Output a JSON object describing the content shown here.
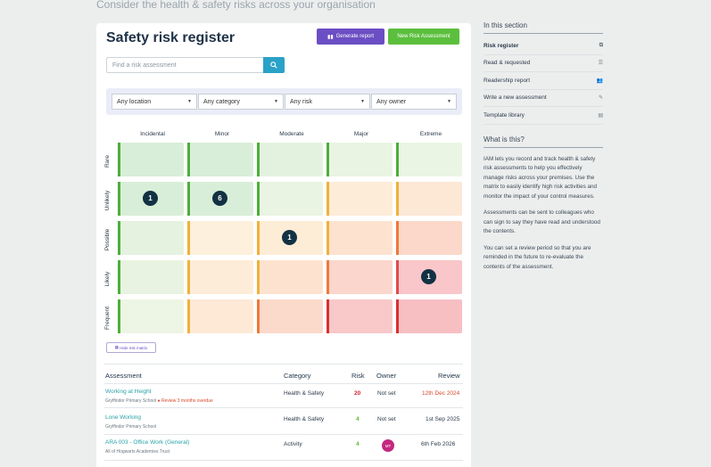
{
  "page": {
    "subtitle": "Consider the health & safety risks across your organisation"
  },
  "header": {
    "title": "Safety risk register",
    "generate_label": "Generate report",
    "new_label": "New Risk Assessment"
  },
  "search": {
    "placeholder": "Find a risk assessment"
  },
  "filters": {
    "location": "Any location",
    "category": "Any category",
    "risk": "Any risk",
    "owner": "Any owner"
  },
  "matrix": {
    "columns": [
      "Incidental",
      "Minor",
      "Moderate",
      "Major",
      "Extreme"
    ],
    "rows": [
      "Rare",
      "Unlikely",
      "Possible",
      "Likely",
      "Frequent"
    ],
    "counts": [
      {
        "row": 1,
        "col": 0,
        "value": "1"
      },
      {
        "row": 1,
        "col": 1,
        "value": "6"
      },
      {
        "row": 2,
        "col": 2,
        "value": "1"
      },
      {
        "row": 3,
        "col": 4,
        "value": "1"
      }
    ],
    "hide_label": "Hide risk matrix"
  },
  "table": {
    "headers": {
      "assessment": "Assessment",
      "category": "Category",
      "risk": "Risk",
      "owner": "Owner",
      "review": "Review"
    },
    "rows": [
      {
        "name": "Working at Height",
        "sub": "Gryffindor Primary School",
        "warning": "Review 3 months overdue",
        "category": "Health & Safety",
        "risk": "20",
        "owner": "Not set",
        "review": "12th Dec 2024"
      },
      {
        "name": "Lone Working",
        "sub": "Gryffindor Primary School",
        "category": "Health & Safety",
        "risk": "4",
        "owner": "Not set",
        "review": "1st Sep 2025"
      },
      {
        "name": "ARA 003 - Office Work (General)",
        "sub": "All of Hogwarts Academies Trust",
        "category": "Activity",
        "risk": "4",
        "owner": "MT",
        "review": "6th Feb 2026"
      }
    ]
  },
  "sidebar": {
    "heading": "In this section",
    "items": [
      {
        "label": "Risk register",
        "icon": "copy-icon"
      },
      {
        "label": "Read & requested",
        "icon": "list-icon"
      },
      {
        "label": "Readership report",
        "icon": "users-icon"
      },
      {
        "label": "Write a new assessment",
        "icon": "pencil-icon"
      },
      {
        "label": "Template library",
        "icon": "archive-icon"
      }
    ],
    "about_heading": "What is this?",
    "about": [
      "IAM lets you record and track health & safety risk assessments to help you effectively manage risks across your premises. Use the matrix to easily identify high risk activities and monitor the impact of your control measures.",
      "Assessments can be sent to colleagues who can sign to say they have read and understood the contents.",
      "You can set a review period so that you are reminded in the future to re-evaluate the contents of the assessment."
    ]
  },
  "colors": {
    "accent_purple": "#6b4ec3",
    "accent_green": "#5bbf3d",
    "accent_teal": "#2aa2c7",
    "badge": "#123243"
  }
}
